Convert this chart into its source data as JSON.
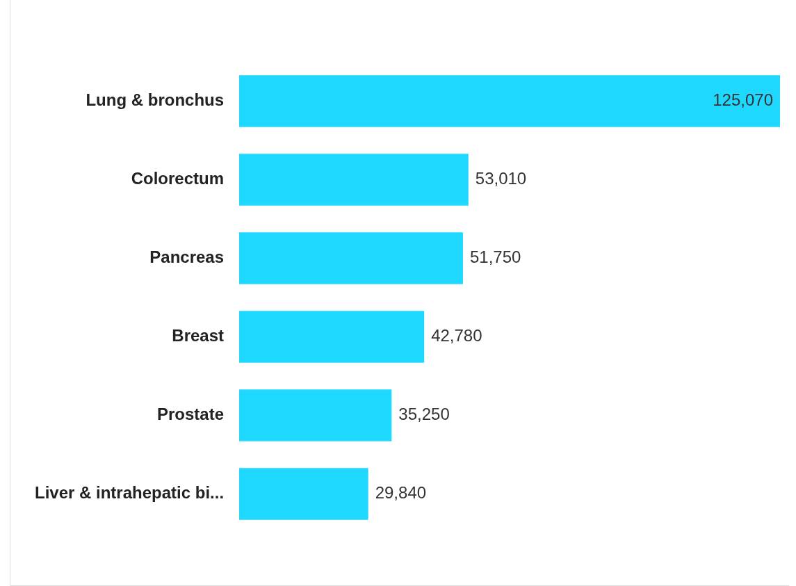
{
  "chart_data": {
    "type": "bar",
    "orientation": "horizontal",
    "categories": [
      "Lung & bronchus",
      "Colorectum",
      "Pancreas",
      "Breast",
      "Prostate",
      "Liver & intrahepatic bi..."
    ],
    "values": [
      125070,
      53010,
      51750,
      42780,
      35250,
      29840
    ],
    "value_labels": [
      "125,070",
      "53,010",
      "51,750",
      "42,780",
      "35,250",
      "29,840"
    ],
    "color": "#1fd8ff"
  }
}
